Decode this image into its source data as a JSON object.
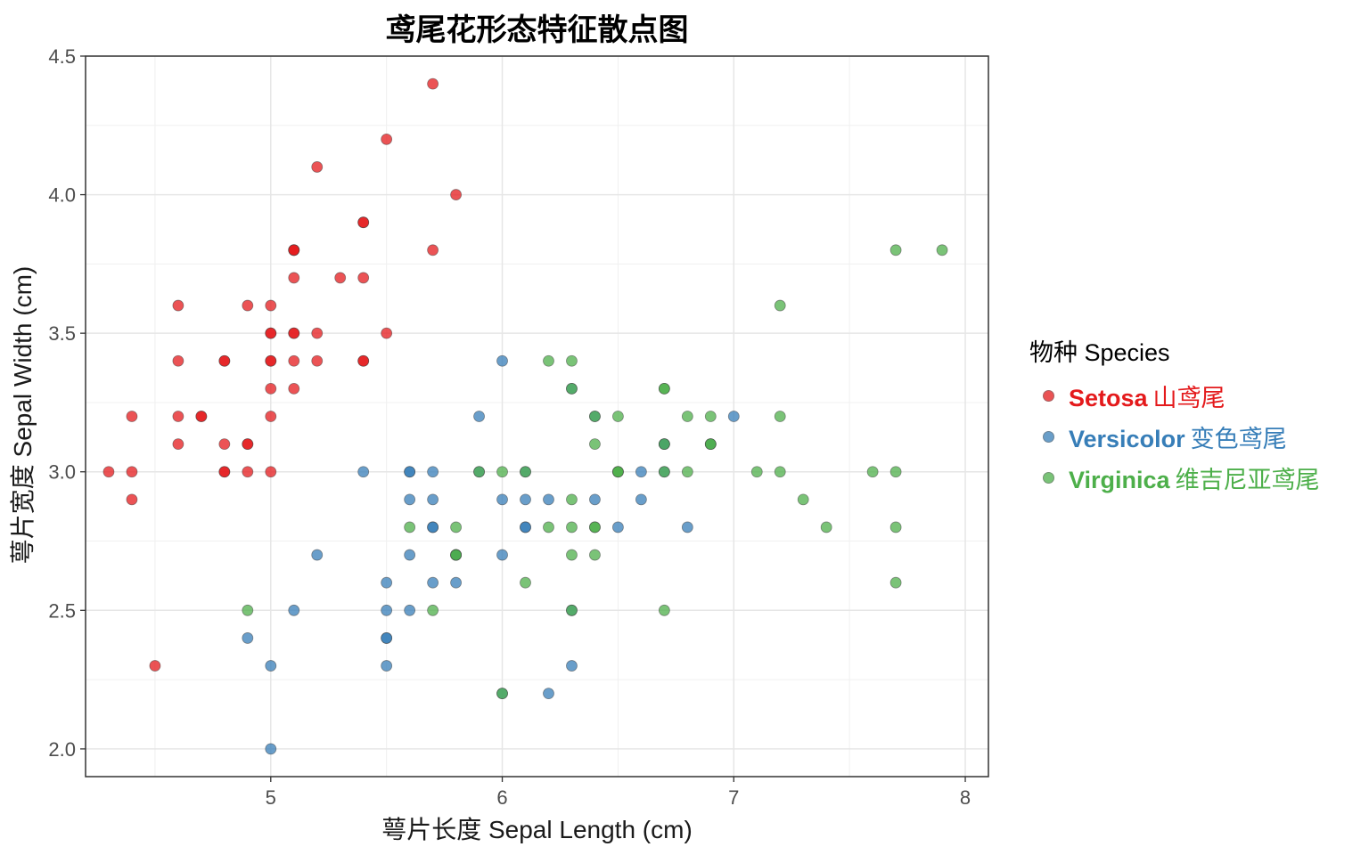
{
  "chart_data": {
    "type": "scatter",
    "title": "鸢尾花形态特征散点图",
    "xlabel": "萼片长度 Sepal Length (cm)",
    "ylabel": "萼片宽度 Sepal Width (cm)",
    "xlim": [
      4.2,
      8.1
    ],
    "ylim": [
      1.9,
      4.5
    ],
    "x_ticks": [
      5,
      6,
      7,
      8
    ],
    "y_ticks": [
      2.0,
      2.5,
      3.0,
      3.5,
      4.0,
      4.5
    ],
    "x_tick_labels": [
      "5",
      "6",
      "7",
      "8"
    ],
    "y_tick_labels": [
      "2.0",
      "2.5",
      "3.0",
      "3.5",
      "4.0",
      "4.5"
    ],
    "grid": true,
    "legend": {
      "title": "物种 Species",
      "placement": "right",
      "entries": [
        {
          "name_en": "Setosa",
          "name_cn": "山鸢尾",
          "color": "#e41a1c"
        },
        {
          "name_en": "Versicolor",
          "name_cn": "变色鸢尾",
          "color": "#377eb8"
        },
        {
          "name_en": "Virginica",
          "name_cn": "维吉尼亚鸢尾",
          "color": "#4daf4a"
        }
      ]
    },
    "series": [
      {
        "name": "Setosa",
        "color": "#e41a1c",
        "points": [
          [
            5.1,
            3.5
          ],
          [
            4.9,
            3.0
          ],
          [
            4.7,
            3.2
          ],
          [
            4.6,
            3.1
          ],
          [
            5.0,
            3.6
          ],
          [
            5.4,
            3.9
          ],
          [
            4.6,
            3.4
          ],
          [
            5.0,
            3.4
          ],
          [
            4.4,
            2.9
          ],
          [
            4.9,
            3.1
          ],
          [
            5.4,
            3.7
          ],
          [
            4.8,
            3.4
          ],
          [
            4.8,
            3.0
          ],
          [
            4.3,
            3.0
          ],
          [
            5.8,
            4.0
          ],
          [
            5.7,
            4.4
          ],
          [
            5.4,
            3.9
          ],
          [
            5.1,
            3.5
          ],
          [
            5.7,
            3.8
          ],
          [
            5.1,
            3.8
          ],
          [
            5.4,
            3.4
          ],
          [
            5.1,
            3.7
          ],
          [
            4.6,
            3.6
          ],
          [
            5.1,
            3.3
          ],
          [
            4.8,
            3.4
          ],
          [
            5.0,
            3.0
          ],
          [
            5.0,
            3.4
          ],
          [
            5.2,
            3.5
          ],
          [
            5.2,
            3.4
          ],
          [
            4.7,
            3.2
          ],
          [
            4.8,
            3.1
          ],
          [
            5.4,
            3.4
          ],
          [
            5.2,
            4.1
          ],
          [
            5.5,
            4.2
          ],
          [
            4.9,
            3.1
          ],
          [
            5.0,
            3.2
          ],
          [
            5.5,
            3.5
          ],
          [
            4.9,
            3.6
          ],
          [
            4.4,
            3.0
          ],
          [
            5.1,
            3.4
          ],
          [
            5.0,
            3.5
          ],
          [
            4.5,
            2.3
          ],
          [
            4.4,
            3.2
          ],
          [
            5.0,
            3.5
          ],
          [
            5.1,
            3.8
          ],
          [
            4.8,
            3.0
          ],
          [
            5.1,
            3.8
          ],
          [
            4.6,
            3.2
          ],
          [
            5.3,
            3.7
          ],
          [
            5.0,
            3.3
          ]
        ]
      },
      {
        "name": "Versicolor",
        "color": "#377eb8",
        "points": [
          [
            7.0,
            3.2
          ],
          [
            6.4,
            3.2
          ],
          [
            6.9,
            3.1
          ],
          [
            5.5,
            2.3
          ],
          [
            6.5,
            2.8
          ],
          [
            5.7,
            2.8
          ],
          [
            6.3,
            3.3
          ],
          [
            4.9,
            2.4
          ],
          [
            6.6,
            2.9
          ],
          [
            5.2,
            2.7
          ],
          [
            5.0,
            2.0
          ],
          [
            5.9,
            3.0
          ],
          [
            6.0,
            2.2
          ],
          [
            6.1,
            2.9
          ],
          [
            5.6,
            2.9
          ],
          [
            6.7,
            3.1
          ],
          [
            5.6,
            3.0
          ],
          [
            5.8,
            2.7
          ],
          [
            6.2,
            2.2
          ],
          [
            5.6,
            2.5
          ],
          [
            5.9,
            3.2
          ],
          [
            6.1,
            2.8
          ],
          [
            6.3,
            2.5
          ],
          [
            6.1,
            2.8
          ],
          [
            6.4,
            2.9
          ],
          [
            6.6,
            3.0
          ],
          [
            6.8,
            2.8
          ],
          [
            6.7,
            3.0
          ],
          [
            6.0,
            2.9
          ],
          [
            5.7,
            2.6
          ],
          [
            5.5,
            2.4
          ],
          [
            5.5,
            2.4
          ],
          [
            5.8,
            2.7
          ],
          [
            6.0,
            2.7
          ],
          [
            5.4,
            3.0
          ],
          [
            6.0,
            3.4
          ],
          [
            6.7,
            3.1
          ],
          [
            6.3,
            2.3
          ],
          [
            5.6,
            3.0
          ],
          [
            5.5,
            2.5
          ],
          [
            5.5,
            2.6
          ],
          [
            6.1,
            3.0
          ],
          [
            5.8,
            2.6
          ],
          [
            5.0,
            2.3
          ],
          [
            5.6,
            2.7
          ],
          [
            5.7,
            3.0
          ],
          [
            5.7,
            2.9
          ],
          [
            6.2,
            2.9
          ],
          [
            5.1,
            2.5
          ],
          [
            5.7,
            2.8
          ]
        ]
      },
      {
        "name": "Virginica",
        "color": "#4daf4a",
        "points": [
          [
            6.3,
            3.3
          ],
          [
            5.8,
            2.7
          ],
          [
            7.1,
            3.0
          ],
          [
            6.3,
            2.9
          ],
          [
            6.5,
            3.0
          ],
          [
            7.6,
            3.0
          ],
          [
            4.9,
            2.5
          ],
          [
            7.3,
            2.9
          ],
          [
            6.7,
            2.5
          ],
          [
            7.2,
            3.6
          ],
          [
            6.5,
            3.2
          ],
          [
            6.4,
            2.7
          ],
          [
            6.8,
            3.0
          ],
          [
            5.7,
            2.5
          ],
          [
            5.8,
            2.8
          ],
          [
            6.4,
            3.2
          ],
          [
            6.5,
            3.0
          ],
          [
            7.7,
            3.8
          ],
          [
            7.7,
            2.6
          ],
          [
            6.0,
            2.2
          ],
          [
            6.9,
            3.2
          ],
          [
            5.6,
            2.8
          ],
          [
            7.7,
            2.8
          ],
          [
            6.3,
            2.7
          ],
          [
            6.7,
            3.3
          ],
          [
            7.2,
            3.2
          ],
          [
            6.2,
            2.8
          ],
          [
            6.1,
            3.0
          ],
          [
            6.4,
            2.8
          ],
          [
            7.2,
            3.0
          ],
          [
            7.4,
            2.8
          ],
          [
            7.9,
            3.8
          ],
          [
            6.4,
            2.8
          ],
          [
            6.3,
            2.8
          ],
          [
            6.1,
            2.6
          ],
          [
            7.7,
            3.0
          ],
          [
            6.3,
            3.4
          ],
          [
            6.4,
            3.1
          ],
          [
            6.0,
            3.0
          ],
          [
            6.9,
            3.1
          ],
          [
            6.7,
            3.1
          ],
          [
            6.9,
            3.1
          ],
          [
            5.8,
            2.7
          ],
          [
            6.8,
            3.2
          ],
          [
            6.7,
            3.3
          ],
          [
            6.7,
            3.0
          ],
          [
            6.3,
            2.5
          ],
          [
            6.5,
            3.0
          ],
          [
            6.2,
            3.4
          ],
          [
            5.9,
            3.0
          ]
        ]
      }
    ]
  }
}
